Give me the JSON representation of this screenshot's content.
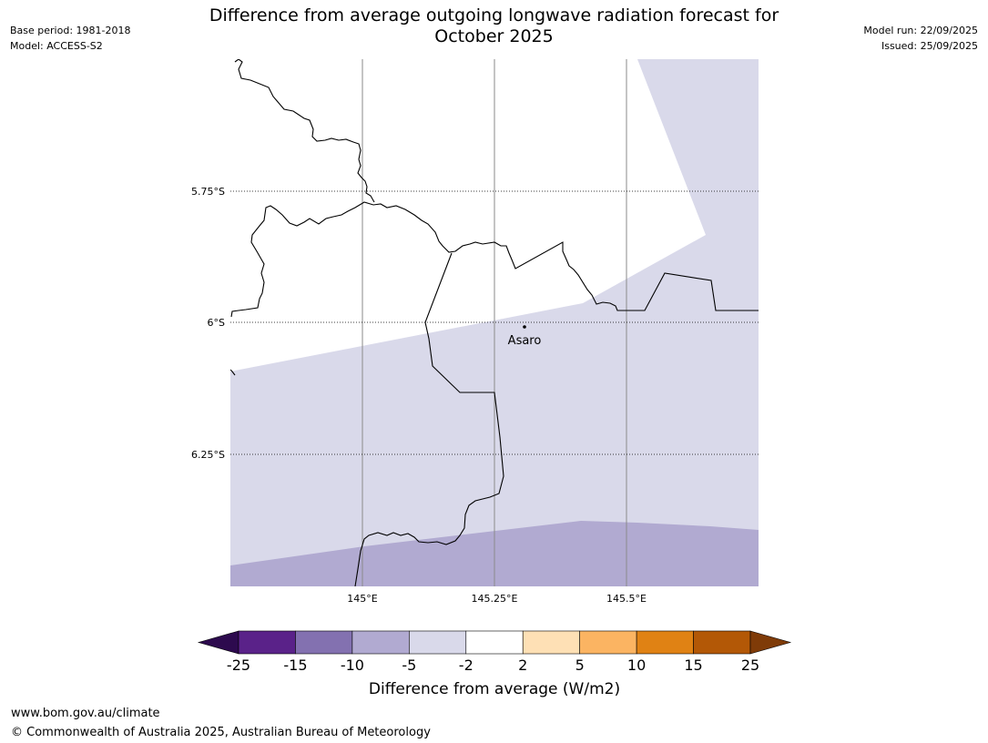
{
  "title_line1": "Difference from average outgoing longwave radiation forecast for",
  "title_line2": "October 2025",
  "base_period": "Base period: 1981-2018",
  "model": "Model: ACCESS-S2",
  "model_run": "Model run: 22/09/2025",
  "issued": "Issued: 25/09/2025",
  "map": {
    "lat_labels": [
      "5.75°S",
      "6°S",
      "6.25°S"
    ],
    "lon_labels": [
      "145°E",
      "145.25°E",
      "145.5°E"
    ],
    "place": {
      "name": "Asaro",
      "lon": 145.3,
      "lat": -6.01
    },
    "extent": {
      "lon_min": 144.75,
      "lon_max": 145.75,
      "lat_min": -6.5,
      "lat_max": -5.5
    }
  },
  "colorbar": {
    "tick_labels": [
      "-25",
      "-15",
      "-10",
      "-5",
      "-2",
      "2",
      "5",
      "10",
      "15",
      "25"
    ],
    "colors": [
      "#2d0a4e",
      "#5a2289",
      "#8371b0",
      "#b1aad1",
      "#d9d9ea",
      "#ffffff",
      "#fee0b5",
      "#fbb462",
      "#e08214",
      "#b35806",
      "#7f3b08"
    ],
    "label": "Difference from average (W/m2)"
  },
  "footer_url": "www.bom.gov.au/climate",
  "footer_copyright": "© Commonwealth of Australia 2025, Australian Bureau of Meteorology"
}
